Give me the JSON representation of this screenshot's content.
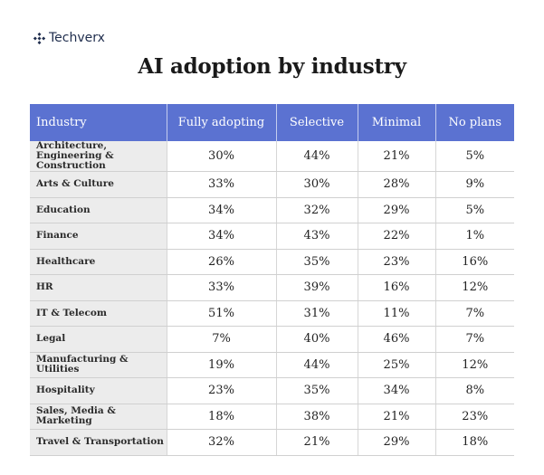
{
  "brand": {
    "name": "Techverx",
    "icon": "logo-mark-icon",
    "color": "#1f2d4d"
  },
  "header_color": "#5b72d1",
  "chart_data": {
    "type": "table",
    "title": "AI adoption by industry",
    "columns": [
      "Industry",
      "Fully adopting",
      "Selective",
      "Minimal",
      "No plans"
    ],
    "rows": [
      [
        "Architecture, Engineering & Construction",
        "30%",
        "44%",
        "21%",
        "5%"
      ],
      [
        "Arts & Culture",
        "33%",
        "30%",
        "28%",
        "9%"
      ],
      [
        "Education",
        "34%",
        "32%",
        "29%",
        "5%"
      ],
      [
        "Finance",
        "34%",
        "43%",
        "22%",
        "1%"
      ],
      [
        "Healthcare",
        "26%",
        "35%",
        "23%",
        "16%"
      ],
      [
        "HR",
        "33%",
        "39%",
        "16%",
        "12%"
      ],
      [
        "IT & Telecom",
        "51%",
        "31%",
        "11%",
        "7%"
      ],
      [
        "Legal",
        "7%",
        "40%",
        "46%",
        "7%"
      ],
      [
        "Manufacturing & Utilities",
        "19%",
        "44%",
        "25%",
        "12%"
      ],
      [
        "Hospitality",
        "23%",
        "35%",
        "34%",
        "8%"
      ],
      [
        "Sales, Media & Marketing",
        "18%",
        "38%",
        "21%",
        "23%"
      ],
      [
        "Travel & Transportation",
        "32%",
        "21%",
        "29%",
        "18%"
      ]
    ]
  }
}
